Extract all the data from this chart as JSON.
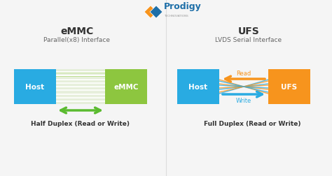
{
  "bg_color": "#f5f5f5",
  "title_color": "#333333",
  "emmc_title": "eMMC",
  "ufs_title": "UFS",
  "emmc_subtitle": "Parallel(x8) Interface",
  "ufs_subtitle": "LVDS Serial Interface",
  "emmc_caption": "Half Duplex (Read or Write)",
  "ufs_caption": "Full Duplex (Read or Write)",
  "host_color": "#29abe2",
  "emmc_box_color": "#8dc63f",
  "ufs_box_color": "#f7941d",
  "arrow_green": "#5bbb2f",
  "arrow_orange": "#f7941d",
  "arrow_blue": "#29abe2",
  "line_color_emmc": "#8dc63f",
  "prodigy_blue": "#1e6fa8",
  "prodigy_orange": "#f7941d",
  "prodigy_text": "Prodigy",
  "prodigy_sub": "TECHNOVATIONS",
  "read_label": "Read",
  "write_label": "Write",
  "divider_color": "#dddddd"
}
